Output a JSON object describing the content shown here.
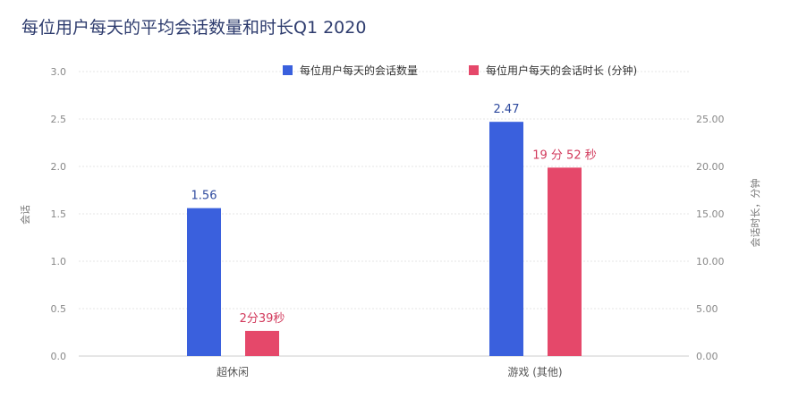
{
  "chart_data": {
    "type": "bar",
    "title": "每位用户每天的平均会话数量和时长Q1 2020",
    "categories": [
      "超休闲",
      "游戏 (其他)"
    ],
    "series": [
      {
        "name": "每位用户每天的会话数量",
        "values": [
          1.56,
          2.47
        ],
        "labels": [
          "1.56",
          "2.47"
        ],
        "axis": "left",
        "color": "#3a60dd"
      },
      {
        "name": "每位用户每天的会话时长 (分钟)",
        "values": [
          2.65,
          19.87
        ],
        "labels": [
          "2分39秒",
          "19 分 52 秒"
        ],
        "axis": "right",
        "color": "#e5486a"
      }
    ],
    "left_axis": {
      "label": "会话",
      "ylim": [
        0,
        3.0
      ],
      "ticks": [
        "0.0",
        "0.5",
        "1.0",
        "1.5",
        "2.0",
        "2.5",
        "3.0"
      ]
    },
    "right_axis": {
      "label": "会话时长，分钟",
      "ylim": [
        0,
        30
      ],
      "ticks": [
        "0.00",
        "5.00",
        "10.00",
        "15.00",
        "20.00",
        "25.00"
      ]
    },
    "grid": true,
    "legend": "top-right"
  }
}
